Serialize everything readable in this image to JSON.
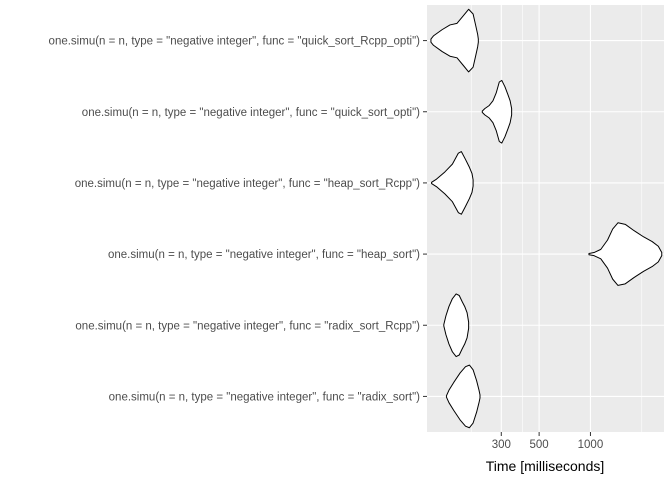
{
  "chart_data": {
    "type": "violin",
    "orientation": "horizontal",
    "title": "",
    "xlabel": "Time [milliseconds]",
    "ylabel": "",
    "x_scale": "log10",
    "xlim": [
      110,
      2700
    ],
    "x_ticks": [
      300,
      500,
      1000
    ],
    "x_tick_labels": [
      "300",
      "500",
      "1000"
    ],
    "x_minor_ticks": [
      200,
      400,
      2000
    ],
    "grid": true,
    "panel_background": "#ebebeb",
    "grid_color": "#ffffff",
    "violin_outline_color": "#000000",
    "violin_fill_color": "#ffffff",
    "categories": [
      "one.simu(n = n, type = \"negative integer\", func = \"quick_sort_Rcpp_opti\")",
      "one.simu(n = n, type = \"negative integer\", func = \"quick_sort_opti\")",
      "one.simu(n = n, type = \"negative integer\", func = \"heap_sort_Rcpp\")",
      "one.simu(n = n, type = \"negative integer\", func = \"heap_sort\")",
      "one.simu(n = n, type = \"negative integer\", func = \"radix_sort_Rcpp\")",
      "one.simu(n = n, type = \"negative integer\", func = \"radix_sort\")"
    ],
    "series": [
      {
        "min": 116,
        "max": 220,
        "profile": [
          [
            116,
            0.05
          ],
          [
            120,
            0.15
          ],
          [
            135,
            0.35
          ],
          [
            150,
            0.5
          ],
          [
            165,
            0.55
          ],
          [
            180,
            0.8
          ],
          [
            193,
            1.0
          ],
          [
            205,
            0.85
          ],
          [
            212,
            0.5
          ],
          [
            218,
            0.2
          ],
          [
            220,
            0.05
          ]
        ]
      },
      {
        "min": 232,
        "max": 345,
        "profile": [
          [
            232,
            0.02
          ],
          [
            240,
            0.1
          ],
          [
            255,
            0.2
          ],
          [
            268,
            0.35
          ],
          [
            280,
            0.6
          ],
          [
            292,
            0.95
          ],
          [
            302,
            1.0
          ],
          [
            315,
            0.8
          ],
          [
            328,
            0.55
          ],
          [
            338,
            0.35
          ],
          [
            345,
            0.1
          ]
        ]
      },
      {
        "min": 117,
        "max": 205,
        "profile": [
          [
            117,
            0.02
          ],
          [
            125,
            0.12
          ],
          [
            140,
            0.35
          ],
          [
            155,
            0.6
          ],
          [
            168,
            0.95
          ],
          [
            175,
            1.0
          ],
          [
            185,
            0.75
          ],
          [
            195,
            0.5
          ],
          [
            202,
            0.3
          ],
          [
            205,
            0.1
          ]
        ]
      },
      {
        "min": 980,
        "max": 2620,
        "profile": [
          [
            980,
            0.02
          ],
          [
            1050,
            0.05
          ],
          [
            1150,
            0.15
          ],
          [
            1260,
            0.45
          ],
          [
            1350,
            0.8
          ],
          [
            1450,
            1.0
          ],
          [
            1600,
            0.95
          ],
          [
            1800,
            0.75
          ],
          [
            2050,
            0.55
          ],
          [
            2300,
            0.4
          ],
          [
            2500,
            0.25
          ],
          [
            2620,
            0.05
          ]
        ]
      },
      {
        "min": 138,
        "max": 193,
        "profile": [
          [
            138,
            0.02
          ],
          [
            142,
            0.3
          ],
          [
            148,
            0.6
          ],
          [
            155,
            0.85
          ],
          [
            163,
            1.0
          ],
          [
            170,
            0.95
          ],
          [
            177,
            0.75
          ],
          [
            183,
            0.6
          ],
          [
            189,
            0.4
          ],
          [
            193,
            0.1
          ]
        ]
      },
      {
        "min": 143,
        "max": 225,
        "profile": [
          [
            143,
            0.02
          ],
          [
            148,
            0.2
          ],
          [
            158,
            0.45
          ],
          [
            172,
            0.75
          ],
          [
            185,
            0.95
          ],
          [
            195,
            1.0
          ],
          [
            205,
            0.85
          ],
          [
            215,
            0.5
          ],
          [
            222,
            0.2
          ],
          [
            225,
            0.05
          ]
        ]
      }
    ]
  }
}
